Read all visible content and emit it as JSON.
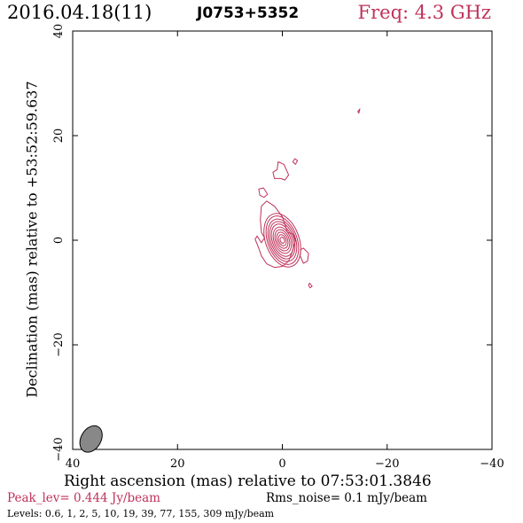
{
  "header": {
    "date": "2016.04.18(11)",
    "source": "J0753+5352",
    "freq": "Freq: 4.3 GHz"
  },
  "footer": {
    "peak": "Peak_lev=  0.444 Jy/beam",
    "rms": "Rms_noise=  0.1 mJy/beam",
    "levels": "Levels: 0.6,    1,    2,    5,   10,   19,   39,   77,  155,  309 mJy/beam"
  },
  "colors": {
    "contour": "#c0325a",
    "beam": "#888888"
  },
  "chart_data": {
    "type": "contour",
    "xlabel": "Right ascension (mas) relative to 07:53:01.3846",
    "ylabel": "Declination (mas) relative to +53:52:59.637",
    "xlim": [
      40,
      -40
    ],
    "ylim": [
      -40,
      40
    ],
    "xticks": [
      40,
      20,
      0,
      -20,
      -40
    ],
    "yticks": [
      -40,
      -20,
      0,
      20,
      40
    ],
    "xtick_labels": [
      "40",
      "20",
      "0",
      "−20",
      "−40"
    ],
    "ytick_labels": [
      "−40",
      "−20",
      "0",
      "20",
      "40"
    ],
    "contour_levels_mJy_per_beam": [
      0.6,
      1,
      2,
      5,
      10,
      19,
      39,
      77,
      155,
      309
    ],
    "core": {
      "x": 0,
      "y": 0,
      "angle_deg": -20,
      "axes_mas": [
        [
          3.2,
          5.3
        ],
        [
          2.8,
          4.8
        ],
        [
          2.5,
          4.2
        ],
        [
          2.2,
          3.7
        ],
        [
          1.9,
          3.2
        ],
        [
          1.6,
          2.6
        ],
        [
          1.3,
          2.1
        ],
        [
          1.0,
          1.6
        ],
        [
          0.7,
          1.1
        ],
        [
          0.4,
          0.6
        ]
      ]
    },
    "extended_contours_mas": [
      [
        [
          -1,
          1.5
        ],
        [
          0,
          4.5
        ],
        [
          1.5,
          6.5
        ],
        [
          3,
          7.5
        ],
        [
          4,
          6.5
        ],
        [
          4.2,
          4
        ],
        [
          4,
          1.5
        ],
        [
          3.4,
          0.5
        ],
        [
          4,
          -0.5
        ],
        [
          4.8,
          0.8
        ],
        [
          5.2,
          0.2
        ],
        [
          4.5,
          -1.5
        ],
        [
          4,
          -3
        ],
        [
          3,
          -4.5
        ],
        [
          1.5,
          -5.2
        ],
        [
          0,
          -5
        ],
        [
          -1.2,
          -4
        ],
        [
          -2,
          -2
        ],
        [
          -2.5,
          0
        ],
        [
          -2,
          1.2
        ]
      ],
      [
        [
          -1.2,
          12.5
        ],
        [
          -0.3,
          14.5
        ],
        [
          0.8,
          15
        ],
        [
          1,
          13.5
        ],
        [
          1.8,
          13
        ],
        [
          1.5,
          11.8
        ],
        [
          0.3,
          11.8
        ],
        [
          -0.5,
          11.5
        ]
      ],
      [
        [
          2.8,
          8.8
        ],
        [
          3.6,
          10
        ],
        [
          4.5,
          9.8
        ],
        [
          4.3,
          8.6
        ],
        [
          3.5,
          8.2
        ]
      ],
      [
        [
          -4,
          -1.5
        ],
        [
          -5,
          -2.5
        ],
        [
          -4.8,
          -4
        ],
        [
          -4,
          -4.4
        ],
        [
          -3.4,
          -3
        ],
        [
          -3.5,
          -1.8
        ]
      ],
      [
        [
          -2,
          15
        ],
        [
          -2.4,
          15.6
        ],
        [
          -2.9,
          15.2
        ],
        [
          -2.5,
          14.5
        ]
      ],
      [
        [
          -5.2,
          -8.2
        ],
        [
          -5.7,
          -8.8
        ],
        [
          -5.3,
          -9.1
        ],
        [
          -5,
          -8.6
        ]
      ],
      [
        [
          -14.4,
          24.6
        ],
        [
          -14.8,
          25.1
        ],
        [
          -14.6,
          24.3
        ]
      ]
    ],
    "beam": {
      "x": 36.5,
      "y": -38,
      "major_mas": 2.7,
      "minor_mas": 1.9,
      "angle_deg": 30
    }
  }
}
